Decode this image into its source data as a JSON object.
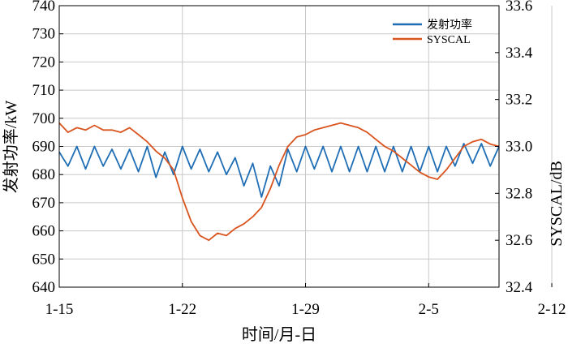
{
  "chart_data": {
    "type": "line",
    "xlabel": "时间/月-日",
    "ylabel_left": "发射功率/kW",
    "ylabel_right": "SYSCAL/dB",
    "x_ticks": [
      "1-15",
      "1-22",
      "1-29",
      "2-5",
      "2-12"
    ],
    "x_range_days": [
      0,
      25
    ],
    "y_left": {
      "min": 640,
      "max": 740,
      "ticks": [
        "640",
        "650",
        "660",
        "670",
        "680",
        "690",
        "700",
        "710",
        "720",
        "730",
        "740"
      ]
    },
    "y_right": {
      "min": 32.4,
      "max": 33.6,
      "ticks": [
        "32.4",
        "32.6",
        "32.8",
        "33.0",
        "33.2",
        "33.4",
        "33.6"
      ]
    },
    "grid": true,
    "legend_position": "top-right",
    "series": [
      {
        "name": "发射功率",
        "axis": "left",
        "color": "#1f6eb5",
        "x": [
          0.0,
          0.5,
          1.0,
          1.5,
          2.0,
          2.5,
          3.0,
          3.5,
          4.0,
          4.5,
          5.0,
          5.5,
          6.0,
          6.5,
          7.0,
          7.5,
          8.0,
          8.5,
          9.0,
          9.5,
          10.0,
          10.5,
          11.0,
          11.5,
          12.0,
          12.5,
          13.0,
          13.5,
          14.0,
          14.5,
          15.0,
          15.5,
          16.0,
          16.5,
          17.0,
          17.5,
          18.0,
          18.5,
          19.0,
          19.5,
          20.0,
          20.5,
          21.0,
          21.5,
          22.0,
          22.5,
          23.0,
          23.5,
          24.0,
          24.5,
          25.0
        ],
        "values": [
          688,
          683,
          690,
          682,
          690,
          683,
          689,
          682,
          689,
          681,
          690,
          679,
          688,
          680,
          690,
          682,
          689,
          681,
          688,
          680,
          686,
          676,
          684,
          672,
          683,
          676,
          689,
          681,
          690,
          682,
          690,
          681,
          690,
          681,
          690,
          681,
          690,
          681,
          690,
          681,
          690,
          681,
          690,
          681,
          690,
          683,
          691,
          684,
          691,
          683,
          690
        ]
      },
      {
        "name": "SYSCAL",
        "axis": "right",
        "color": "#d9541e",
        "x": [
          0.0,
          0.5,
          1.0,
          1.5,
          2.0,
          2.5,
          3.0,
          3.5,
          4.0,
          4.5,
          5.0,
          5.5,
          6.0,
          6.5,
          7.0,
          7.5,
          8.0,
          8.5,
          9.0,
          9.5,
          10.0,
          10.5,
          11.0,
          11.5,
          12.0,
          12.5,
          13.0,
          13.5,
          14.0,
          14.5,
          15.0,
          15.5,
          16.0,
          16.5,
          17.0,
          17.5,
          18.0,
          18.5,
          19.0,
          19.5,
          20.0,
          20.5,
          21.0,
          21.5,
          22.0,
          22.5,
          23.0,
          23.5,
          24.0,
          24.5,
          25.0
        ],
        "values": [
          33.1,
          33.06,
          33.08,
          33.07,
          33.09,
          33.07,
          33.07,
          33.06,
          33.08,
          33.05,
          33.02,
          32.98,
          32.95,
          32.9,
          32.78,
          32.68,
          32.62,
          32.6,
          32.63,
          32.62,
          32.65,
          32.67,
          32.7,
          32.74,
          32.82,
          32.92,
          33.0,
          33.04,
          33.05,
          33.07,
          33.08,
          33.09,
          33.1,
          33.09,
          33.08,
          33.06,
          33.03,
          33.0,
          32.98,
          32.95,
          32.92,
          32.89,
          32.87,
          32.86,
          32.9,
          32.95,
          33.0,
          33.02,
          33.03,
          33.01,
          33.0
        ]
      }
    ]
  }
}
